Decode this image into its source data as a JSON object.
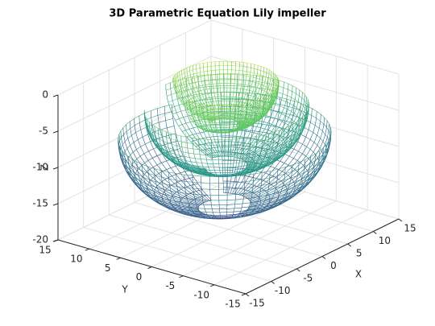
{
  "chart_data": {
    "type": "mesh3d",
    "title": "3D Parametric Equation Lily impeller",
    "xlabel": "X",
    "ylabel": "Y",
    "zlabel": "Z",
    "xlim": [
      -15,
      15
    ],
    "ylim": [
      -15,
      15
    ],
    "zlim": [
      -20,
      0
    ],
    "xticks": [
      -15,
      -10,
      -5,
      0,
      5,
      10,
      15
    ],
    "yticks": [
      -15,
      -10,
      -5,
      0,
      5,
      10,
      15
    ],
    "zticks": [
      -20,
      -15,
      -10,
      -5,
      0
    ],
    "grid": true,
    "colormap": [
      "#440154",
      "#3b528b",
      "#21918c",
      "#5ec962",
      "#fde725"
    ]
  }
}
